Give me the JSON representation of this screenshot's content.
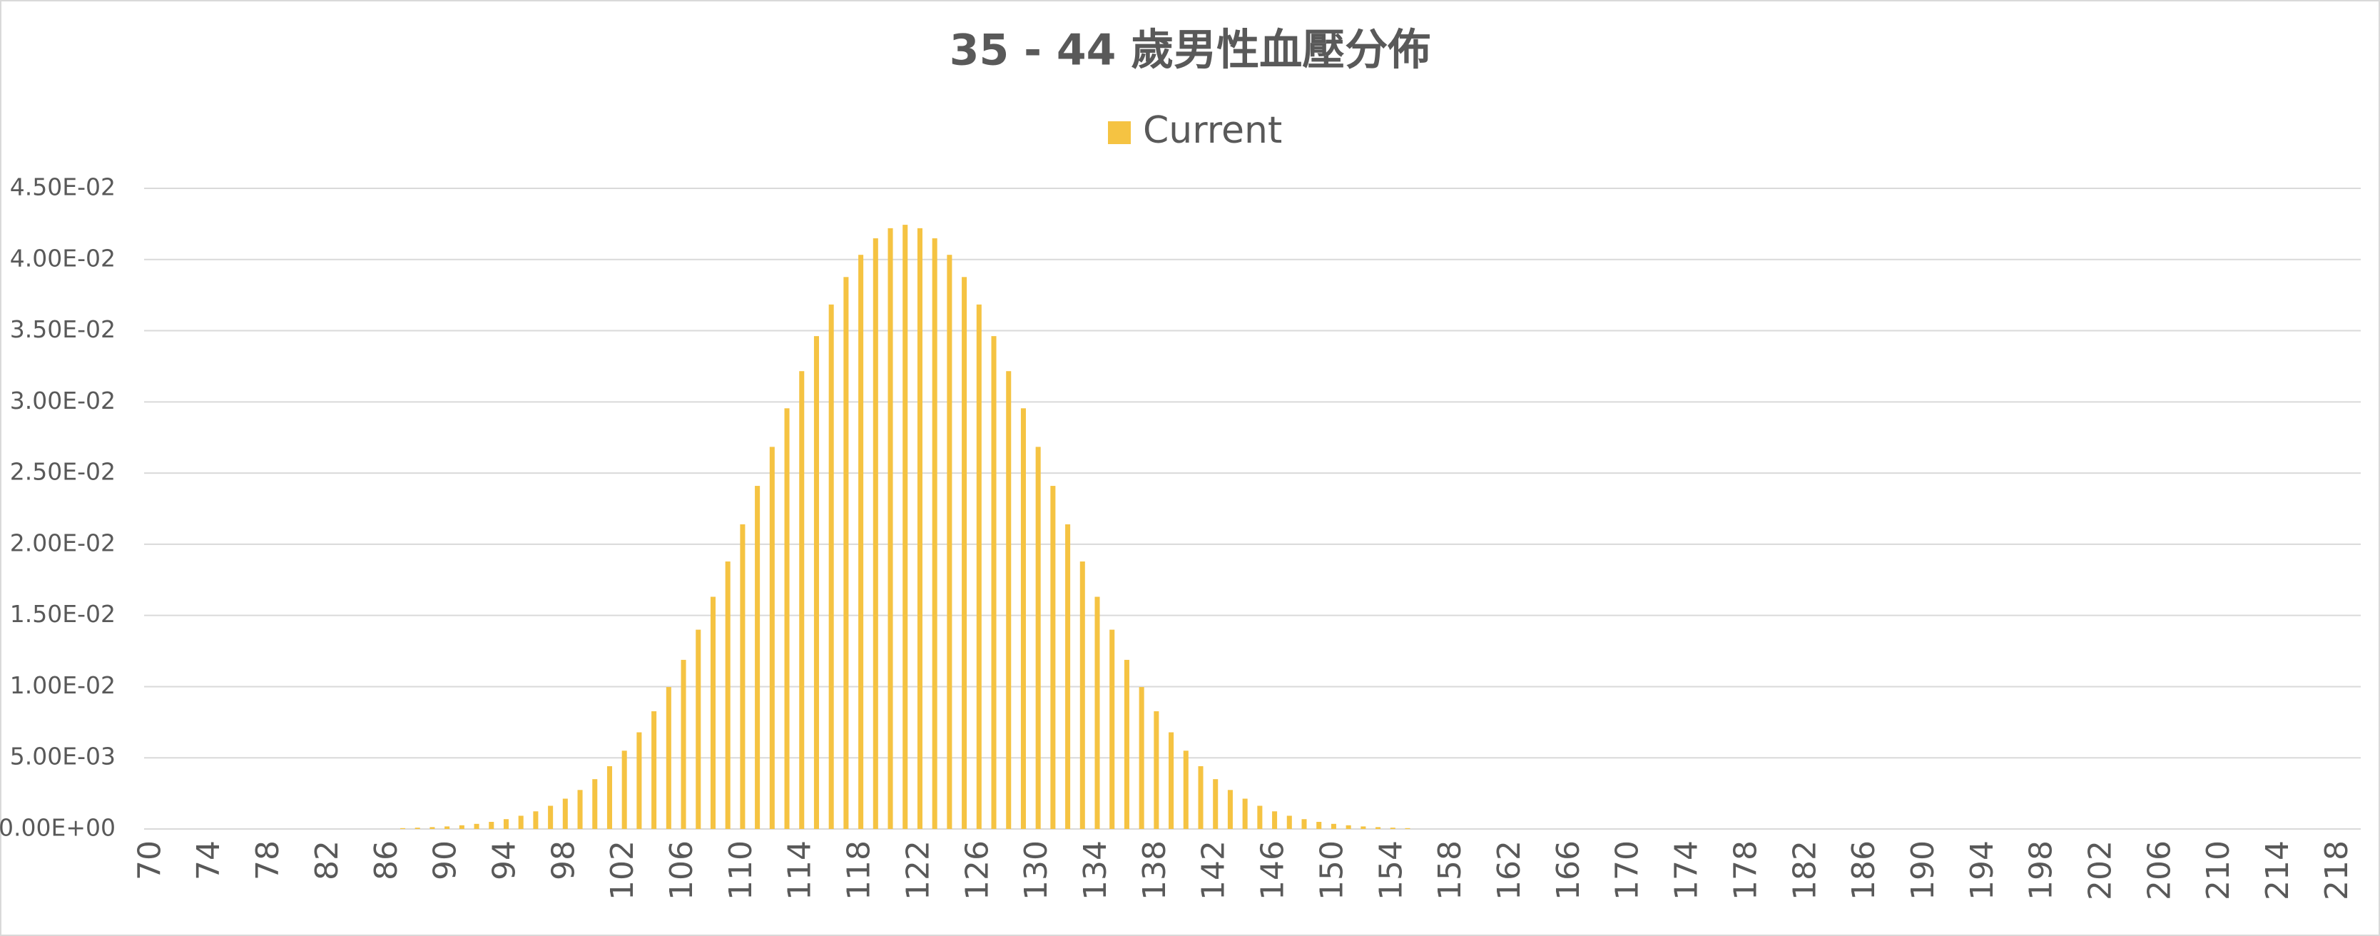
{
  "chart_data": {
    "type": "bar",
    "title": "35 - 44 歲男性血壓分佈",
    "series": [
      {
        "name": "Current",
        "color": "#f5c342",
        "values": [
          0,
          0,
          0,
          0,
          0,
          0,
          0,
          0,
          0,
          0,
          0,
          0,
          0,
          0,
          0,
          0,
          0,
          6e-05,
          9e-05,
          0.00013,
          0.00018,
          0.00026,
          0.00036,
          0.0005,
          0.00069,
          0.00093,
          0.00124,
          0.00163,
          0.00213,
          0.00274,
          0.0035,
          0.00441,
          0.0055,
          0.00679,
          0.00827,
          0.00997,
          0.01188,
          0.014,
          0.01631,
          0.01879,
          0.0214,
          0.0241,
          0.02684,
          0.02955,
          0.03216,
          0.03462,
          0.03684,
          0.03877,
          0.04033,
          0.04149,
          0.0422,
          0.04244,
          0.0422,
          0.04149,
          0.04033,
          0.03877,
          0.03684,
          0.03462,
          0.03216,
          0.02955,
          0.02684,
          0.0241,
          0.0214,
          0.01879,
          0.01631,
          0.014,
          0.01188,
          0.00997,
          0.00827,
          0.00679,
          0.0055,
          0.00441,
          0.0035,
          0.00274,
          0.00213,
          0.00163,
          0.00124,
          0.00093,
          0.00069,
          0.0005,
          0.00036,
          0.00026,
          0.00018,
          0.00013,
          9e-05,
          6e-05,
          0,
          0,
          0,
          0,
          0,
          0,
          0,
          0,
          0,
          0,
          0,
          0,
          0,
          0,
          0,
          0,
          0,
          0,
          0,
          0,
          0,
          0,
          0,
          0,
          0,
          0,
          0,
          0,
          0,
          0,
          0,
          0,
          0,
          0,
          0,
          0,
          0,
          0,
          0,
          0,
          0,
          0,
          0,
          0,
          0,
          0,
          0,
          0,
          0,
          0,
          0,
          0,
          0,
          0,
          0,
          0,
          0,
          0,
          0,
          0,
          0,
          0,
          0,
          0
        ]
      }
    ],
    "categories": [
      70,
      null,
      null,
      null,
      74,
      null,
      null,
      null,
      78,
      null,
      null,
      null,
      82,
      null,
      null,
      null,
      86,
      null,
      null,
      null,
      90,
      null,
      null,
      null,
      94,
      null,
      null,
      null,
      98,
      null,
      null,
      null,
      102,
      null,
      null,
      null,
      106,
      null,
      null,
      null,
      110,
      null,
      null,
      null,
      114,
      null,
      null,
      null,
      118,
      null,
      null,
      null,
      122,
      null,
      null,
      null,
      126,
      null,
      null,
      null,
      130,
      null,
      null,
      null,
      134,
      null,
      null,
      null,
      138,
      null,
      null,
      null,
      142,
      null,
      null,
      null,
      146,
      null,
      null,
      null,
      150,
      null,
      null,
      null,
      154,
      null,
      null,
      null,
      158,
      null,
      null,
      null,
      162,
      null,
      null,
      null,
      166,
      null,
      null,
      null,
      170,
      null,
      null,
      null,
      174,
      null,
      null,
      null,
      178,
      null,
      null,
      null,
      182,
      null,
      null,
      null,
      186,
      null,
      null,
      null,
      190,
      null,
      null,
      null,
      194,
      null,
      null,
      null,
      198,
      null,
      null,
      null,
      202,
      null,
      null,
      null,
      206,
      null,
      null,
      null,
      210,
      null,
      null,
      null,
      214,
      null,
      null,
      null,
      218,
      null
    ],
    "ylim": [
      0,
      0.045
    ],
    "yticks": [
      {
        "value": 0,
        "label": "0.00E+00"
      },
      {
        "value": 0.005,
        "label": "5.00E-03"
      },
      {
        "value": 0.01,
        "label": "1.00E-02"
      },
      {
        "value": 0.015,
        "label": "1.50E-02"
      },
      {
        "value": 0.02,
        "label": "2.00E-02"
      },
      {
        "value": 0.025,
        "label": "2.50E-02"
      },
      {
        "value": 0.03,
        "label": "3.00E-02"
      },
      {
        "value": 0.035,
        "label": "3.50E-02"
      },
      {
        "value": 0.04,
        "label": "4.00E-02"
      },
      {
        "value": 0.045,
        "label": "4.50E-02"
      }
    ],
    "grid": true,
    "legend": "top"
  }
}
